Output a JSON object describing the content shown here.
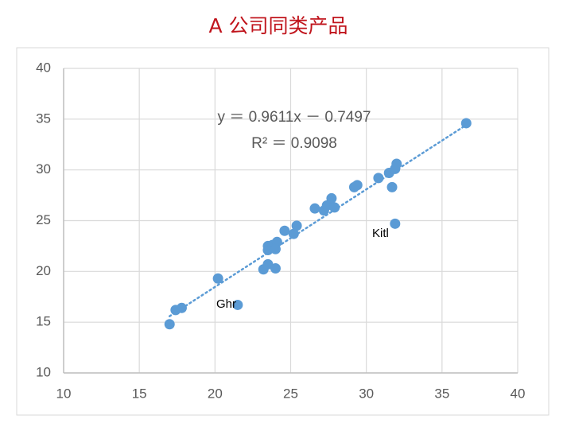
{
  "chart_data": {
    "type": "scatter",
    "title": "A 公司同类产品",
    "x": [
      17.0,
      17.4,
      17.8,
      20.2,
      21.5,
      23.2,
      23.5,
      24.0,
      23.5,
      23.5,
      23.8,
      24.1,
      24.0,
      24.6,
      25.2,
      25.4,
      26.6,
      27.2,
      27.4,
      27.7,
      27.9,
      29.2,
      29.4,
      30.8,
      31.5,
      31.7,
      31.9,
      32.0,
      31.9,
      36.6
    ],
    "values": [
      14.8,
      16.2,
      16.4,
      19.3,
      16.7,
      20.2,
      20.7,
      20.3,
      22.1,
      22.5,
      22.6,
      22.9,
      22.2,
      24.0,
      23.7,
      24.5,
      26.2,
      26.0,
      26.5,
      27.2,
      26.3,
      28.3,
      28.5,
      29.2,
      29.7,
      28.3,
      30.1,
      30.6,
      24.7,
      34.6
    ],
    "color": "#5b9bd5",
    "xlim": [
      10,
      40
    ],
    "xticks": [
      10,
      15,
      20,
      25,
      30,
      35,
      40
    ],
    "ylim": [
      10,
      40
    ],
    "yticks": [
      10,
      15,
      20,
      25,
      30,
      35,
      40
    ],
    "grid": true,
    "trendline": {
      "slope": 0.9611,
      "intercept": -0.7497,
      "equation_label": "y ＝ 0.9611x － 0.7497",
      "r_squared": 0.9098,
      "r_squared_label": "R² ＝ 0.9098"
    },
    "annotations": [
      "Ghr",
      "Kitl"
    ]
  }
}
